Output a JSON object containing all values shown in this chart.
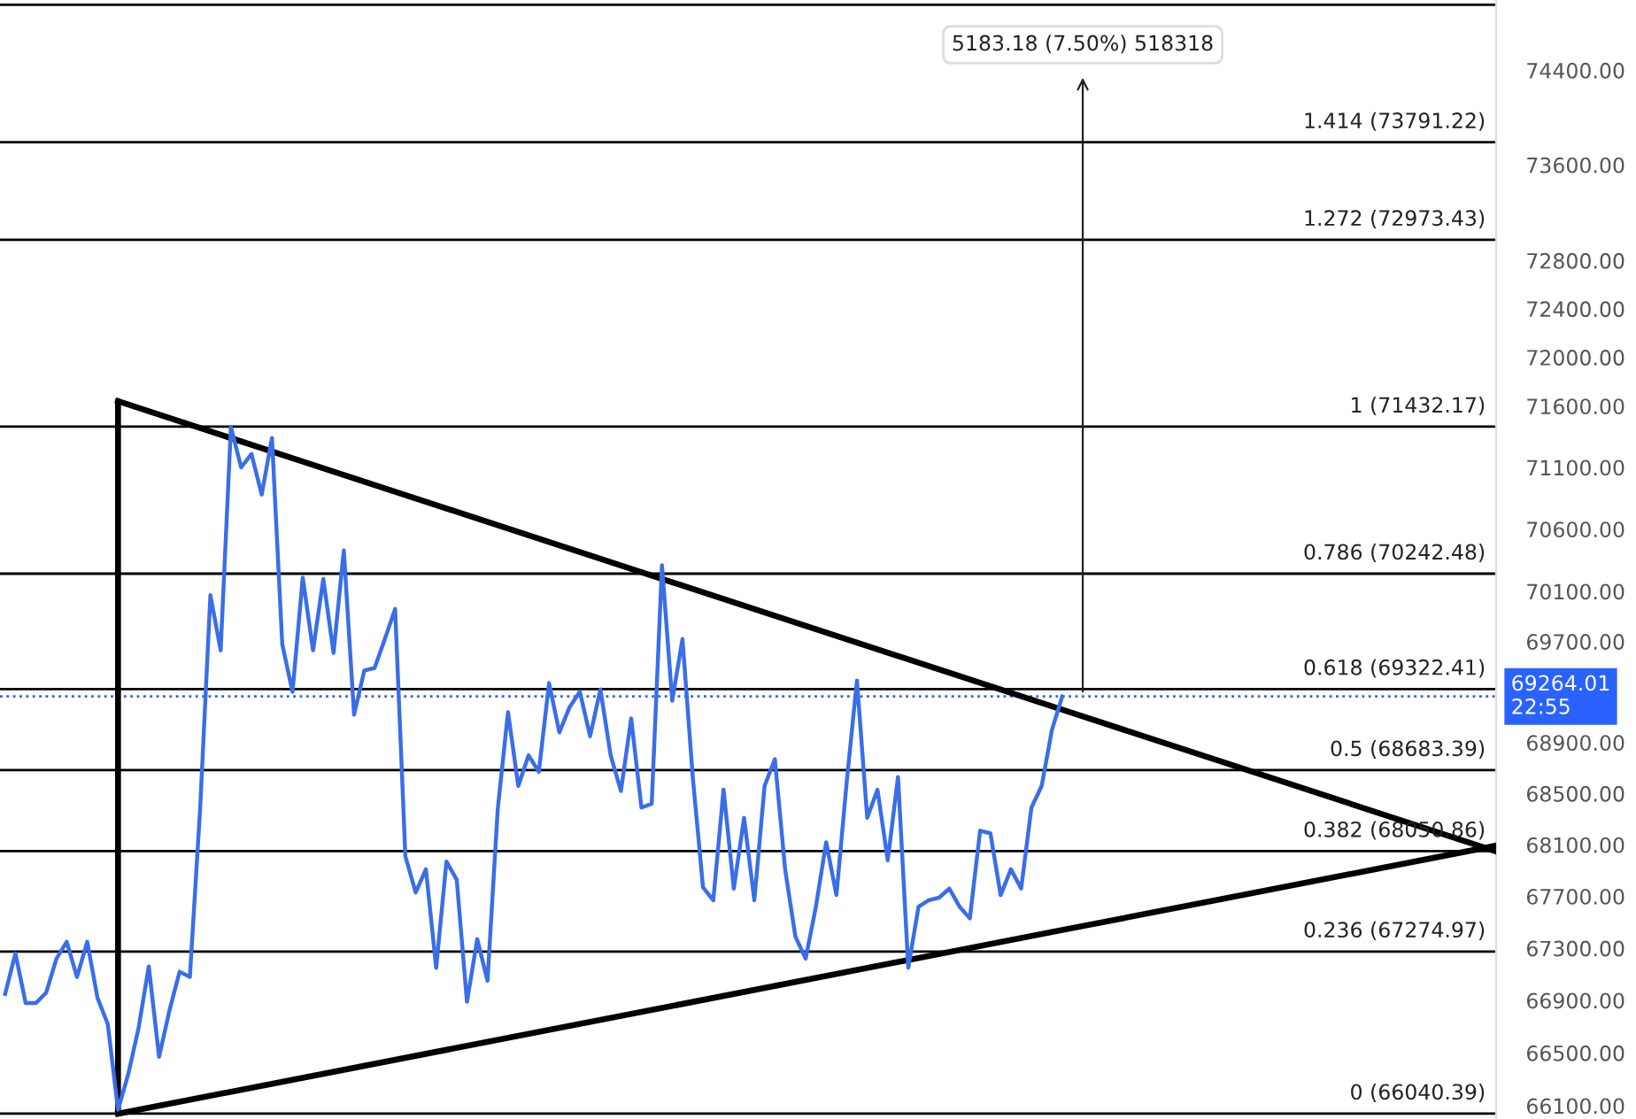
{
  "chart_data": {
    "type": "line",
    "log": true,
    "tick_labels": "y",
    "categories": [
      null,
      null,
      null,
      null,
      null,
      null,
      null,
      null,
      null,
      null,
      null,
      null,
      null,
      null,
      null,
      null,
      null,
      null,
      null,
      null,
      null,
      null,
      null,
      null,
      null,
      null,
      null,
      null,
      null,
      null,
      null,
      null,
      null,
      null,
      null,
      null,
      null,
      null,
      null,
      null,
      null,
      null,
      null,
      null,
      null,
      null,
      null,
      null,
      null,
      null,
      null,
      null,
      null,
      null,
      null,
      null,
      null,
      null,
      null,
      null,
      null,
      null,
      null,
      null,
      null,
      null,
      null,
      null,
      null,
      null,
      null,
      null,
      null,
      null,
      null,
      null,
      null,
      null,
      null,
      null,
      null,
      null,
      null,
      null,
      null,
      null,
      null,
      null,
      null,
      null,
      null,
      null,
      null,
      null,
      null,
      null,
      null,
      null,
      null,
      null,
      null,
      null,
      null,
      null
    ],
    "ylim": [
      66000,
      75000
    ],
    "yticks": [
      {
        "value": 66100,
        "label": "66100.00"
      },
      {
        "value": 66500,
        "label": "66500.00"
      },
      {
        "value": 66900,
        "label": "66900.00"
      },
      {
        "value": 67300,
        "label": "67300.00"
      },
      {
        "value": 67700,
        "label": "67700.00"
      },
      {
        "value": 68100,
        "label": "68100.00"
      },
      {
        "value": 68500,
        "label": "68500.00"
      },
      {
        "value": 68900,
        "label": "68900.00"
      },
      {
        "value": 69700,
        "label": "69700.00"
      },
      {
        "value": 70100,
        "label": "70100.00"
      },
      {
        "value": 70600,
        "label": "70600.00"
      },
      {
        "value": 71100,
        "label": "71100.00"
      },
      {
        "value": 71600,
        "label": "71600.00"
      },
      {
        "value": 72000,
        "label": "72000.00"
      },
      {
        "value": 72400,
        "label": "72400.00"
      },
      {
        "value": 72800,
        "label": "72800.00"
      },
      {
        "value": 73600,
        "label": "73600.00"
      },
      {
        "value": 74400,
        "label": "74400.00"
      }
    ],
    "series": [
      {
        "color": "#3a6ee8",
        "values": [
          66950,
          67260,
          66880,
          66880,
          66960,
          67220,
          67350,
          67080,
          67350,
          66920,
          66720,
          66070,
          66340,
          66690,
          67160,
          66470,
          66820,
          67120,
          67080,
          68380,
          70070,
          69630,
          71430,
          71100,
          71210,
          70880,
          71340,
          69680,
          69300,
          70210,
          69630,
          70200,
          69610,
          70430,
          69120,
          69470,
          69490,
          69720,
          69960,
          68010,
          67730,
          67910,
          67150,
          67970,
          67830,
          66890,
          67370,
          67050,
          68380,
          69140,
          68560,
          68800,
          68670,
          69370,
          68980,
          69180,
          69300,
          68950,
          69320,
          68800,
          68520,
          69090,
          68390,
          68420,
          70310,
          69230,
          69720,
          68630,
          67770,
          67670,
          68530,
          67760,
          68310,
          67670,
          68560,
          68770,
          67910,
          67390,
          67220,
          67620,
          68120,
          67710,
          68590,
          69390,
          68310,
          68530,
          67980,
          68630,
          67150,
          67620,
          67670,
          67690,
          67760,
          67620,
          67530,
          68210,
          68190,
          67710,
          67910,
          67760,
          68390,
          68560,
          69000,
          69264.01
        ]
      },
      {
        "color": "#000000",
        "values": [
          null,
          null,
          null,
          null,
          null,
          null,
          null,
          null,
          null,
          null,
          null,
          71640,
          null,
          null,
          null,
          null,
          null,
          null,
          null,
          null,
          null,
          null,
          null,
          null,
          null,
          null,
          null,
          null,
          null,
          null,
          null,
          null,
          null,
          null,
          null,
          null,
          null,
          null,
          null,
          null,
          null,
          null,
          null,
          null,
          null,
          null,
          null,
          null,
          null,
          null,
          null,
          null,
          null,
          null,
          null,
          null,
          null,
          null,
          null,
          null,
          null,
          null,
          null,
          null,
          null,
          null,
          null,
          null,
          null,
          null,
          null,
          null,
          null,
          null,
          null,
          null,
          null,
          null,
          null,
          null,
          null,
          null,
          null,
          null,
          null,
          null,
          null,
          null,
          null,
          null,
          null,
          null,
          null,
          null,
          null,
          null,
          null,
          null,
          null,
          null,
          null,
          null,
          null,
          69160
        ]
      },
      {
        "color": "#000000",
        "values": [
          null,
          null,
          null,
          null,
          null,
          null,
          null,
          null,
          null,
          null,
          null,
          66040,
          null,
          null,
          null,
          null,
          null,
          null,
          null,
          null,
          null,
          null,
          null,
          null,
          null,
          null,
          null,
          null,
          null,
          null,
          null,
          null,
          null,
          null,
          null,
          null,
          null,
          null,
          null,
          null,
          null,
          null,
          null,
          null,
          null,
          null,
          null,
          null,
          null,
          null,
          null,
          null,
          null,
          null,
          null,
          null,
          null,
          null,
          null,
          null,
          null,
          null,
          null,
          null,
          null,
          null,
          null,
          null,
          null,
          null,
          null,
          null,
          null,
          null,
          null,
          null,
          null,
          null,
          null,
          null,
          null,
          null,
          null,
          null,
          null,
          null,
          null,
          null,
          null,
          null,
          null,
          null,
          null,
          null,
          null,
          null,
          null,
          null,
          null,
          null,
          null,
          null,
          null,
          67440
        ]
      }
    ],
    "ref_lines": [
      {
        "axis": "y",
        "value": 66040.39,
        "label": "0 (66040.39)",
        "color": "#000000"
      },
      {
        "axis": "y",
        "value": 67274.97,
        "label": "0.236 (67274.97)",
        "color": "#000000"
      },
      {
        "axis": "y",
        "value": 68050.86,
        "label": "0.382 (68050.86)",
        "color": "#000000"
      },
      {
        "axis": "y",
        "value": 68683.39,
        "label": "0.5 (68683.39)",
        "color": "#000000"
      },
      {
        "axis": "y",
        "value": 69322.41,
        "label": "0.618 (69322.41)",
        "color": "#000000"
      },
      {
        "axis": "y",
        "value": 70242.48,
        "label": "0.786 (70242.48)",
        "color": "#000000"
      },
      {
        "axis": "y",
        "value": 71432.17,
        "label": "1 (71432.17)",
        "color": "#000000"
      },
      {
        "axis": "y",
        "value": 72973.43,
        "label": "1.272 (72973.43)",
        "color": "#000000"
      },
      {
        "axis": "y",
        "value": 73791.22,
        "label": "1.414 (73791.22)",
        "color": "#000000"
      },
      {
        "axis": "y",
        "value": 74960,
        "color": "#000000"
      },
      {
        "axis": "y",
        "value": 69264.01,
        "label": "69264.01\n22:55",
        "color": "#2962ff",
        "line_style": "dotted"
      }
    ],
    "annotations": [
      "5183.18 (7.50%) 518318"
    ]
  }
}
